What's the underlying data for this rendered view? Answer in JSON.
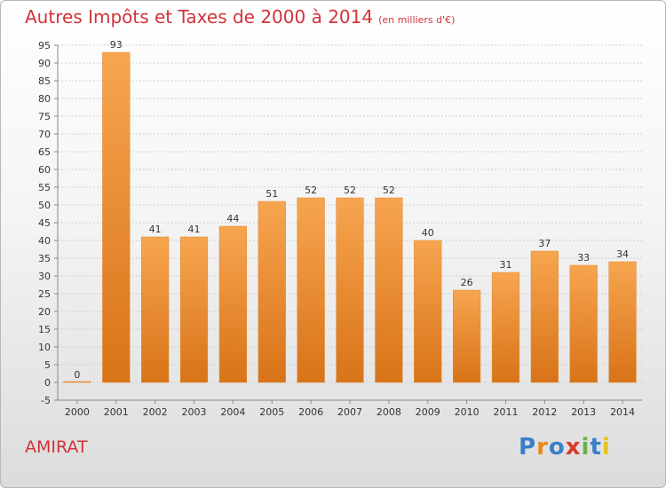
{
  "chart_data": {
    "type": "bar",
    "title": "Autres Impôts et Taxes de 2000 à 2014",
    "subtitle": "(en milliers d'€)",
    "categories": [
      "2000",
      "2001",
      "2002",
      "2003",
      "2004",
      "2005",
      "2006",
      "2007",
      "2008",
      "2009",
      "2010",
      "2011",
      "2012",
      "2013",
      "2014"
    ],
    "values": [
      0,
      93,
      41,
      41,
      44,
      51,
      52,
      52,
      52,
      40,
      26,
      31,
      37,
      33,
      34
    ],
    "ylim": [
      -5,
      95
    ],
    "ytick_step": 5,
    "grid": true,
    "bar_color_light": "#f7a550",
    "bar_color_dark": "#d87318"
  },
  "footer": {
    "commune": "AMIRAT"
  },
  "brand": {
    "letters": [
      "P",
      "r",
      "o",
      "x",
      "i",
      "t",
      "i"
    ],
    "colors": [
      "#3a7fc8",
      "#e8891a",
      "#3a7fc8",
      "#d63a2a",
      "#6ab04c",
      "#3a7fc8",
      "#e8c21a"
    ]
  }
}
